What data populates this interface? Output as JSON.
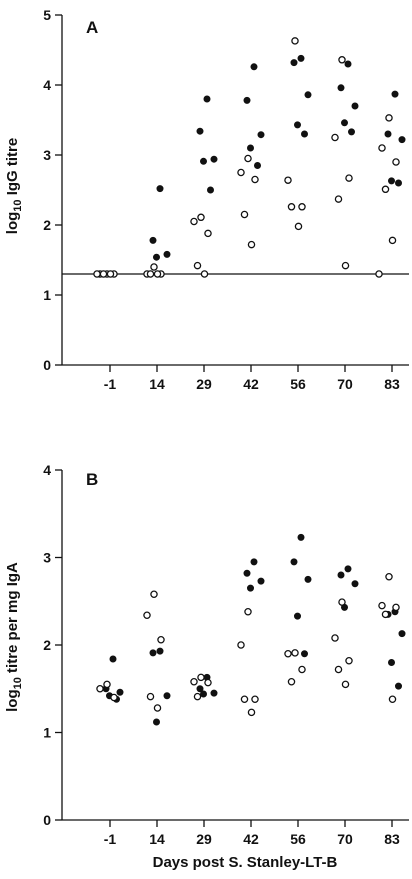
{
  "chart_data": [
    {
      "type": "scatter",
      "panel_label": "A",
      "ylabel_base": "log",
      "ylabel_sub": "10",
      "ylabel_rest": " IgG titre",
      "xlabel": "",
      "categories": [
        "-1",
        "14",
        "29",
        "42",
        "56",
        "70",
        "83"
      ],
      "ylim": [
        0,
        5
      ],
      "yticks": [
        "0",
        "1",
        "2",
        "3",
        "4",
        "5"
      ],
      "reference_line": 1.3,
      "series": [
        {
          "marker": "filled",
          "points": [
            {
              "x": "14",
              "y": 2.52
            },
            {
              "x": "14",
              "y": 1.78
            },
            {
              "x": "14",
              "y": 1.58
            },
            {
              "x": "14",
              "y": 1.54
            },
            {
              "x": "29",
              "y": 3.8
            },
            {
              "x": "29",
              "y": 3.34
            },
            {
              "x": "29",
              "y": 2.94
            },
            {
              "x": "29",
              "y": 2.91
            },
            {
              "x": "29",
              "y": 2.5
            },
            {
              "x": "42",
              "y": 4.26
            },
            {
              "x": "42",
              "y": 3.78
            },
            {
              "x": "42",
              "y": 3.29
            },
            {
              "x": "42",
              "y": 3.1
            },
            {
              "x": "42",
              "y": 2.85
            },
            {
              "x": "56",
              "y": 4.38
            },
            {
              "x": "56",
              "y": 4.32
            },
            {
              "x": "56",
              "y": 3.86
            },
            {
              "x": "56",
              "y": 3.43
            },
            {
              "x": "56",
              "y": 3.3
            },
            {
              "x": "70",
              "y": 4.3
            },
            {
              "x": "70",
              "y": 3.96
            },
            {
              "x": "70",
              "y": 3.7
            },
            {
              "x": "70",
              "y": 3.46
            },
            {
              "x": "70",
              "y": 3.33
            },
            {
              "x": "83",
              "y": 3.87
            },
            {
              "x": "83",
              "y": 3.3
            },
            {
              "x": "83",
              "y": 3.22
            },
            {
              "x": "83",
              "y": 2.63
            },
            {
              "x": "83",
              "y": 2.6
            }
          ]
        },
        {
          "marker": "open",
          "points": [
            {
              "x": "-1",
              "y": 1.3
            },
            {
              "x": "-1",
              "y": 1.3
            },
            {
              "x": "-1",
              "y": 1.3
            },
            {
              "x": "-1",
              "y": 1.3
            },
            {
              "x": "-1",
              "y": 1.3
            },
            {
              "x": "-1",
              "y": 1.3
            },
            {
              "x": "14",
              "y": 1.4
            },
            {
              "x": "14",
              "y": 1.3
            },
            {
              "x": "14",
              "y": 1.3
            },
            {
              "x": "14",
              "y": 1.3
            },
            {
              "x": "14",
              "y": 1.3
            },
            {
              "x": "29",
              "y": 2.11
            },
            {
              "x": "29",
              "y": 2.05
            },
            {
              "x": "29",
              "y": 1.88
            },
            {
              "x": "29",
              "y": 1.42
            },
            {
              "x": "29",
              "y": 1.3
            },
            {
              "x": "42",
              "y": 2.95
            },
            {
              "x": "42",
              "y": 2.75
            },
            {
              "x": "42",
              "y": 2.65
            },
            {
              "x": "42",
              "y": 2.15
            },
            {
              "x": "42",
              "y": 1.72
            },
            {
              "x": "56",
              "y": 4.63
            },
            {
              "x": "56",
              "y": 2.64
            },
            {
              "x": "56",
              "y": 2.26
            },
            {
              "x": "56",
              "y": 2.26
            },
            {
              "x": "56",
              "y": 1.98
            },
            {
              "x": "70",
              "y": 4.36
            },
            {
              "x": "70",
              "y": 3.25
            },
            {
              "x": "70",
              "y": 2.67
            },
            {
              "x": "70",
              "y": 2.37
            },
            {
              "x": "70",
              "y": 1.42
            },
            {
              "x": "83",
              "y": 3.53
            },
            {
              "x": "83",
              "y": 3.1
            },
            {
              "x": "83",
              "y": 2.9
            },
            {
              "x": "83",
              "y": 2.51
            },
            {
              "x": "83",
              "y": 1.78
            },
            {
              "x": "83",
              "y": 1.3
            }
          ]
        }
      ]
    },
    {
      "type": "scatter",
      "panel_label": "B",
      "ylabel_base": "log",
      "ylabel_sub": "10",
      "ylabel_rest": " titre per mg IgA",
      "xlabel": "Days post S. Stanley-LT-B",
      "categories": [
        "-1",
        "14",
        "29",
        "42",
        "56",
        "70",
        "83"
      ],
      "ylim": [
        0,
        4
      ],
      "yticks": [
        "0",
        "1",
        "2",
        "3",
        "4"
      ],
      "series": [
        {
          "marker": "filled",
          "points": [
            {
              "x": "-1",
              "y": 1.84
            },
            {
              "x": "-1",
              "y": 1.5
            },
            {
              "x": "-1",
              "y": 1.46
            },
            {
              "x": "-1",
              "y": 1.42
            },
            {
              "x": "-1",
              "y": 1.38
            },
            {
              "x": "14",
              "y": 1.93
            },
            {
              "x": "14",
              "y": 1.91
            },
            {
              "x": "14",
              "y": 1.42
            },
            {
              "x": "14",
              "y": 1.12
            },
            {
              "x": "29",
              "y": 1.63
            },
            {
              "x": "29",
              "y": 1.5
            },
            {
              "x": "29",
              "y": 1.45
            },
            {
              "x": "29",
              "y": 1.44
            },
            {
              "x": "42",
              "y": 2.95
            },
            {
              "x": "42",
              "y": 2.82
            },
            {
              "x": "42",
              "y": 2.73
            },
            {
              "x": "42",
              "y": 2.65
            },
            {
              "x": "56",
              "y": 3.23
            },
            {
              "x": "56",
              "y": 2.95
            },
            {
              "x": "56",
              "y": 2.75
            },
            {
              "x": "56",
              "y": 2.33
            },
            {
              "x": "56",
              "y": 1.9
            },
            {
              "x": "70",
              "y": 2.87
            },
            {
              "x": "70",
              "y": 2.8
            },
            {
              "x": "70",
              "y": 2.7
            },
            {
              "x": "70",
              "y": 2.43
            },
            {
              "x": "83",
              "y": 2.38
            },
            {
              "x": "83",
              "y": 2.35
            },
            {
              "x": "83",
              "y": 2.13
            },
            {
              "x": "83",
              "y": 1.8
            },
            {
              "x": "83",
              "y": 1.53
            }
          ]
        },
        {
          "marker": "open",
          "points": [
            {
              "x": "-1",
              "y": 1.55
            },
            {
              "x": "-1",
              "y": 1.5
            },
            {
              "x": "-1",
              "y": 1.4
            },
            {
              "x": "14",
              "y": 2.58
            },
            {
              "x": "14",
              "y": 2.34
            },
            {
              "x": "14",
              "y": 2.06
            },
            {
              "x": "14",
              "y": 1.41
            },
            {
              "x": "14",
              "y": 1.28
            },
            {
              "x": "29",
              "y": 1.63
            },
            {
              "x": "29",
              "y": 1.58
            },
            {
              "x": "29",
              "y": 1.57
            },
            {
              "x": "29",
              "y": 1.41
            },
            {
              "x": "42",
              "y": 2.38
            },
            {
              "x": "42",
              "y": 2.0
            },
            {
              "x": "42",
              "y": 1.38
            },
            {
              "x": "42",
              "y": 1.38
            },
            {
              "x": "42",
              "y": 1.23
            },
            {
              "x": "56",
              "y": 1.91
            },
            {
              "x": "56",
              "y": 1.9
            },
            {
              "x": "56",
              "y": 1.72
            },
            {
              "x": "56",
              "y": 1.58
            },
            {
              "x": "70",
              "y": 2.49
            },
            {
              "x": "70",
              "y": 2.08
            },
            {
              "x": "70",
              "y": 1.82
            },
            {
              "x": "70",
              "y": 1.72
            },
            {
              "x": "70",
              "y": 1.55
            },
            {
              "x": "83",
              "y": 2.78
            },
            {
              "x": "83",
              "y": 2.45
            },
            {
              "x": "83",
              "y": 2.43
            },
            {
              "x": "83",
              "y": 2.35
            },
            {
              "x": "83",
              "y": 1.38
            }
          ]
        }
      ]
    }
  ]
}
